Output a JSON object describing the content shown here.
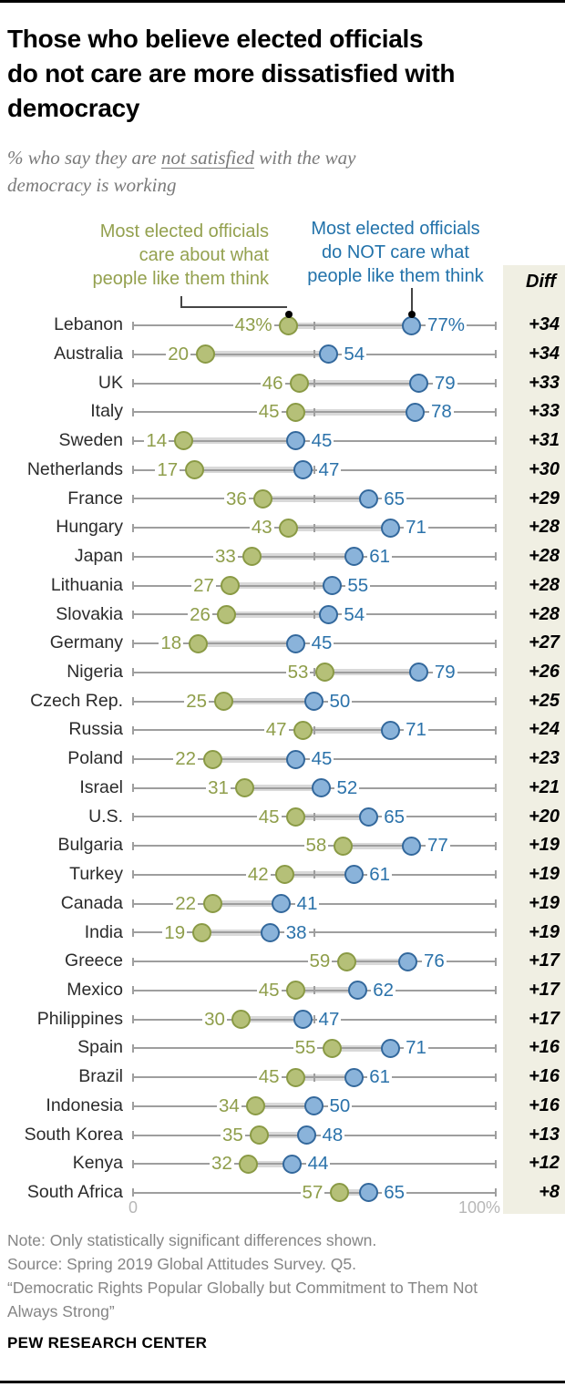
{
  "header": {
    "title_lines": [
      "Those who believe elected officials",
      "do not care are more dissatisfied with",
      "democracy"
    ],
    "subtitle": {
      "part1": "% who say they are ",
      "underlined": "not satisfied",
      "part3": " with the way",
      "line2": "democracy is working"
    }
  },
  "legend": {
    "care": {
      "lines": [
        "Most elected officials",
        "care about what",
        "people like them think"
      ],
      "color": "#94a14f"
    },
    "not_care": {
      "lines": [
        "Most elected officials",
        "do NOT care what",
        "people like them think"
      ],
      "color": "#2272aa"
    }
  },
  "diff_column": {
    "header": "Diff",
    "bg_color": "#f0efe3"
  },
  "chart_data": {
    "type": "dumbbell",
    "title": "Those who believe elected officials do not care are more dissatisfied with democracy",
    "subtitle": "% who say they are not satisfied with the way democracy is working",
    "series_names": [
      "Most elected officials care about what people like them think",
      "Most elected officials do NOT care what people like them think"
    ],
    "axis": {
      "min": 0,
      "max": 100,
      "mid_tick": 50,
      "min_label": "0",
      "max_label": "100%"
    },
    "colors": {
      "care_text": "#8f9e4b",
      "care_fill": "#b5c078",
      "care_stroke": "#8a9a45",
      "not_care_text": "#2b72aa",
      "not_care_fill": "#8ab3da",
      "not_care_stroke": "#33689c"
    },
    "rows": [
      {
        "country": "Lebanon",
        "care": 43,
        "not_care": 77,
        "care_label": "43%",
        "not_care_label": "77%",
        "diff": "+34"
      },
      {
        "country": "Australia",
        "care": 20,
        "not_care": 54,
        "care_label": "20",
        "not_care_label": "54",
        "diff": "+34"
      },
      {
        "country": "UK",
        "care": 46,
        "not_care": 79,
        "care_label": "46",
        "not_care_label": "79",
        "diff": "+33"
      },
      {
        "country": "Italy",
        "care": 45,
        "not_care": 78,
        "care_label": "45",
        "not_care_label": "78",
        "diff": "+33"
      },
      {
        "country": "Sweden",
        "care": 14,
        "not_care": 45,
        "care_label": "14",
        "not_care_label": "45",
        "diff": "+31"
      },
      {
        "country": "Netherlands",
        "care": 17,
        "not_care": 47,
        "care_label": "17",
        "not_care_label": "47",
        "diff": "+30"
      },
      {
        "country": "France",
        "care": 36,
        "not_care": 65,
        "care_label": "36",
        "not_care_label": "65",
        "diff": "+29"
      },
      {
        "country": "Hungary",
        "care": 43,
        "not_care": 71,
        "care_label": "43",
        "not_care_label": "71",
        "diff": "+28"
      },
      {
        "country": "Japan",
        "care": 33,
        "not_care": 61,
        "care_label": "33",
        "not_care_label": "61",
        "diff": "+28"
      },
      {
        "country": "Lithuania",
        "care": 27,
        "not_care": 55,
        "care_label": "27",
        "not_care_label": "55",
        "diff": "+28"
      },
      {
        "country": "Slovakia",
        "care": 26,
        "not_care": 54,
        "care_label": "26",
        "not_care_label": "54",
        "diff": "+28"
      },
      {
        "country": "Germany",
        "care": 18,
        "not_care": 45,
        "care_label": "18",
        "not_care_label": "45",
        "diff": "+27"
      },
      {
        "country": "Nigeria",
        "care": 53,
        "not_care": 79,
        "care_label": "53",
        "not_care_label": "79",
        "diff": "+26"
      },
      {
        "country": "Czech Rep.",
        "care": 25,
        "not_care": 50,
        "care_label": "25",
        "not_care_label": "50",
        "diff": "+25"
      },
      {
        "country": "Russia",
        "care": 47,
        "not_care": 71,
        "care_label": "47",
        "not_care_label": "71",
        "diff": "+24"
      },
      {
        "country": "Poland",
        "care": 22,
        "not_care": 45,
        "care_label": "22",
        "not_care_label": "45",
        "diff": "+23"
      },
      {
        "country": "Israel",
        "care": 31,
        "not_care": 52,
        "care_label": "31",
        "not_care_label": "52",
        "diff": "+21"
      },
      {
        "country": "U.S.",
        "care": 45,
        "not_care": 65,
        "care_label": "45",
        "not_care_label": "65",
        "diff": "+20"
      },
      {
        "country": "Bulgaria",
        "care": 58,
        "not_care": 77,
        "care_label": "58",
        "not_care_label": "77",
        "diff": "+19"
      },
      {
        "country": "Turkey",
        "care": 42,
        "not_care": 61,
        "care_label": "42",
        "not_care_label": "61",
        "diff": "+19"
      },
      {
        "country": "Canada",
        "care": 22,
        "not_care": 41,
        "care_label": "22",
        "not_care_label": "41",
        "diff": "+19"
      },
      {
        "country": "India",
        "care": 19,
        "not_care": 38,
        "care_label": "19",
        "not_care_label": "38",
        "diff": "+19"
      },
      {
        "country": "Greece",
        "care": 59,
        "not_care": 76,
        "care_label": "59",
        "not_care_label": "76",
        "diff": "+17"
      },
      {
        "country": "Mexico",
        "care": 45,
        "not_care": 62,
        "care_label": "45",
        "not_care_label": "62",
        "diff": "+17"
      },
      {
        "country": "Philippines",
        "care": 30,
        "not_care": 47,
        "care_label": "30",
        "not_care_label": "47",
        "diff": "+17"
      },
      {
        "country": "Spain",
        "care": 55,
        "not_care": 71,
        "care_label": "55",
        "not_care_label": "71",
        "diff": "+16"
      },
      {
        "country": "Brazil",
        "care": 45,
        "not_care": 61,
        "care_label": "45",
        "not_care_label": "61",
        "diff": "+16"
      },
      {
        "country": "Indonesia",
        "care": 34,
        "not_care": 50,
        "care_label": "34",
        "not_care_label": "50",
        "diff": "+16"
      },
      {
        "country": "South Korea",
        "care": 35,
        "not_care": 48,
        "care_label": "35",
        "not_care_label": "48",
        "diff": "+13"
      },
      {
        "country": "Kenya",
        "care": 32,
        "not_care": 44,
        "care_label": "32",
        "not_care_label": "44",
        "diff": "+12"
      },
      {
        "country": "South Africa",
        "care": 57,
        "not_care": 65,
        "care_label": "57",
        "not_care_label": "65",
        "diff": "+8"
      }
    ]
  },
  "notes": {
    "lines": [
      "Note: Only statistically significant differences shown.",
      "Source: Spring 2019 Global Attitudes Survey. Q5.",
      "“Democratic Rights Popular Globally but Commitment to Them Not",
      "Always Strong”"
    ]
  },
  "footer": {
    "brand": "PEW RESEARCH CENTER"
  }
}
